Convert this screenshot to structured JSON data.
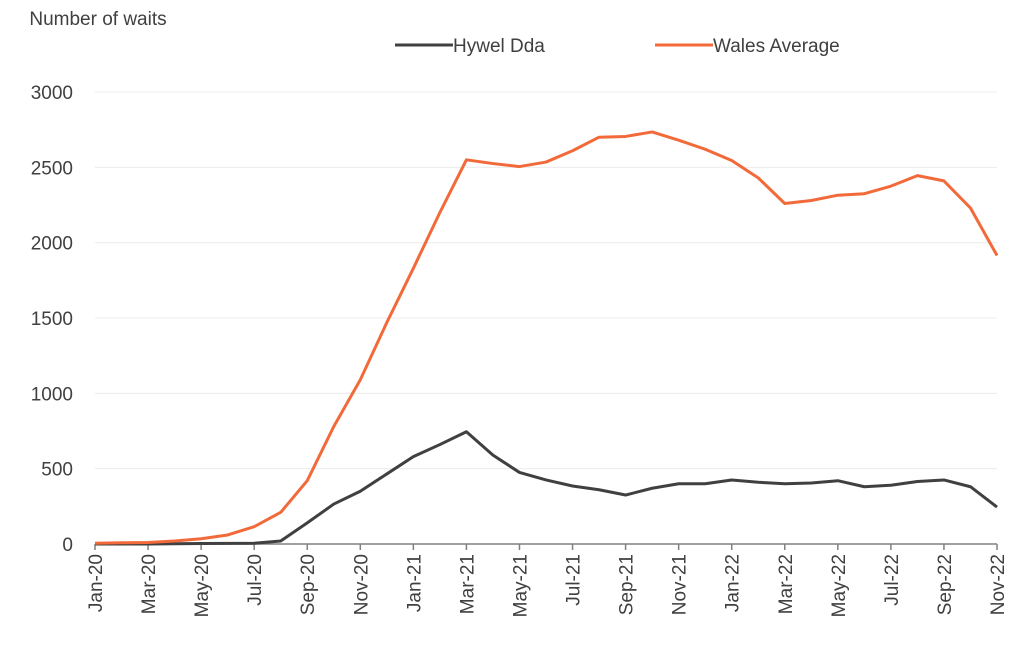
{
  "chart_data": {
    "type": "line",
    "y_label": "Number of waits",
    "categories": [
      "Jan-20",
      null,
      "Mar-20",
      null,
      "May-20",
      null,
      "Jul-20",
      null,
      "Sep-20",
      null,
      "Nov-20",
      null,
      "Jan-21",
      null,
      "Mar-21",
      null,
      "May-21",
      null,
      "Jul-21",
      null,
      "Sep-21",
      null,
      "Nov-21",
      null,
      "Jan-22",
      null,
      "Mar-22",
      null,
      "May-22",
      null,
      "Jul-22",
      null,
      "Sep-22",
      null,
      "Nov-22"
    ],
    "series": [
      {
        "name": "Hywel Dda",
        "color": "#404040",
        "values": [
          0,
          0,
          0,
          2,
          3,
          4,
          5,
          20,
          140,
          265,
          350,
          465,
          580,
          660,
          745,
          590,
          475,
          425,
          385,
          360,
          325,
          370,
          400,
          400,
          425,
          410,
          400,
          405,
          420,
          380,
          390,
          415,
          425,
          380,
          245
        ]
      },
      {
        "name": "Wales Average",
        "color": "#f26a3a",
        "values": [
          5,
          8,
          10,
          20,
          35,
          60,
          115,
          210,
          420,
          780,
          1090,
          1470,
          1830,
          2200,
          2550,
          2525,
          2505,
          2535,
          2610,
          2700,
          2705,
          2735,
          2680,
          2620,
          2545,
          2430,
          2260,
          2280,
          2315,
          2325,
          2375,
          2445,
          2410,
          2230,
          1915
        ]
      }
    ],
    "ylim": [
      0,
      3000
    ],
    "yticks": [
      0,
      500,
      1000,
      1500,
      2000,
      2500,
      3000
    ],
    "grid": true,
    "legend": "top"
  }
}
